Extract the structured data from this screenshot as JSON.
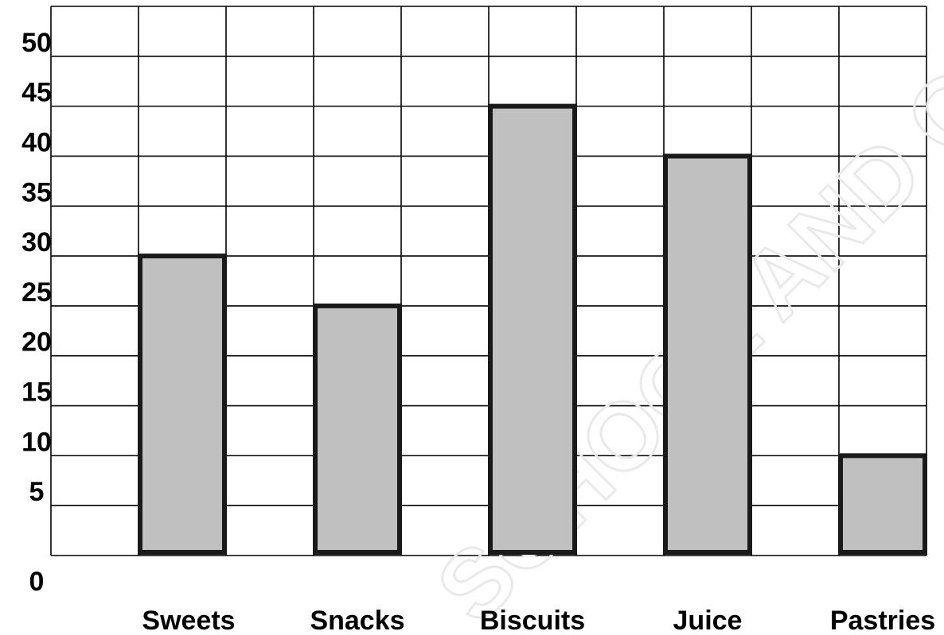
{
  "chart_data": {
    "type": "bar",
    "title": "",
    "xlabel": "",
    "ylabel": "",
    "categories": [
      "Sweets",
      "Snacks",
      "Biscuits",
      "Juice",
      "Pastries"
    ],
    "values": [
      30,
      25,
      45,
      40,
      10
    ],
    "y_ticks": [
      "0",
      "5",
      "10",
      "15",
      "20",
      "25",
      "30",
      "35",
      "40",
      "45",
      "50"
    ],
    "ylim": [
      0,
      55
    ],
    "grid": true,
    "bar_fill": "#c0c0c0",
    "bar_stroke": "#1a1a1a",
    "grid_color": "#000000"
  },
  "watermark": "SCHOOL AND COLLEGE"
}
